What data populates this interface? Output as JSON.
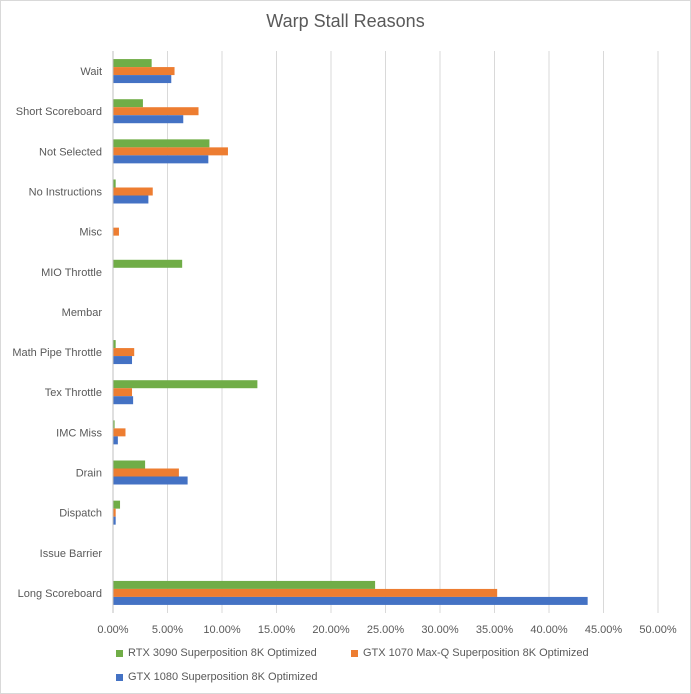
{
  "chart_data": {
    "type": "bar",
    "orientation": "horizontal",
    "title": "Warp Stall Reasons",
    "categories": [
      "Wait",
      "Short Scoreboard",
      "Not Selected",
      "No Instructions",
      "Misc",
      "MIO Throttle",
      "Membar",
      "Math Pipe Throttle",
      "Tex Throttle",
      "IMC Miss",
      "Drain",
      "Dispatch",
      "Issue Barrier",
      "Long Scoreboard"
    ],
    "series": [
      {
        "name": "RTX 3090 Superposition 8K Optimized",
        "color": "#70AD47",
        "values": [
          3.5,
          2.7,
          8.8,
          0.2,
          0.0,
          6.3,
          0.0,
          0.2,
          13.2,
          0.1,
          2.9,
          0.6,
          0.0,
          24.0
        ]
      },
      {
        "name": "GTX 1070 Max-Q Superposition 8K Optimized",
        "color": "#ED7D31",
        "values": [
          5.6,
          7.8,
          10.5,
          3.6,
          0.5,
          0.0,
          0.0,
          1.9,
          1.7,
          1.1,
          6.0,
          0.2,
          0.0,
          35.2
        ]
      },
      {
        "name": "GTX 1080 Superposition 8K Optimized",
        "color": "#4472C4",
        "values": [
          5.3,
          6.4,
          8.7,
          3.2,
          0.0,
          0.0,
          0.0,
          1.7,
          1.8,
          0.4,
          6.8,
          0.2,
          0.0,
          43.5
        ]
      }
    ],
    "xlim": [
      0,
      50
    ],
    "xticks": [
      "0.00%",
      "5.00%",
      "10.00%",
      "15.00%",
      "20.00%",
      "25.00%",
      "30.00%",
      "35.00%",
      "40.00%",
      "45.00%",
      "50.00%"
    ],
    "grid": true,
    "legend_position": "bottom"
  }
}
